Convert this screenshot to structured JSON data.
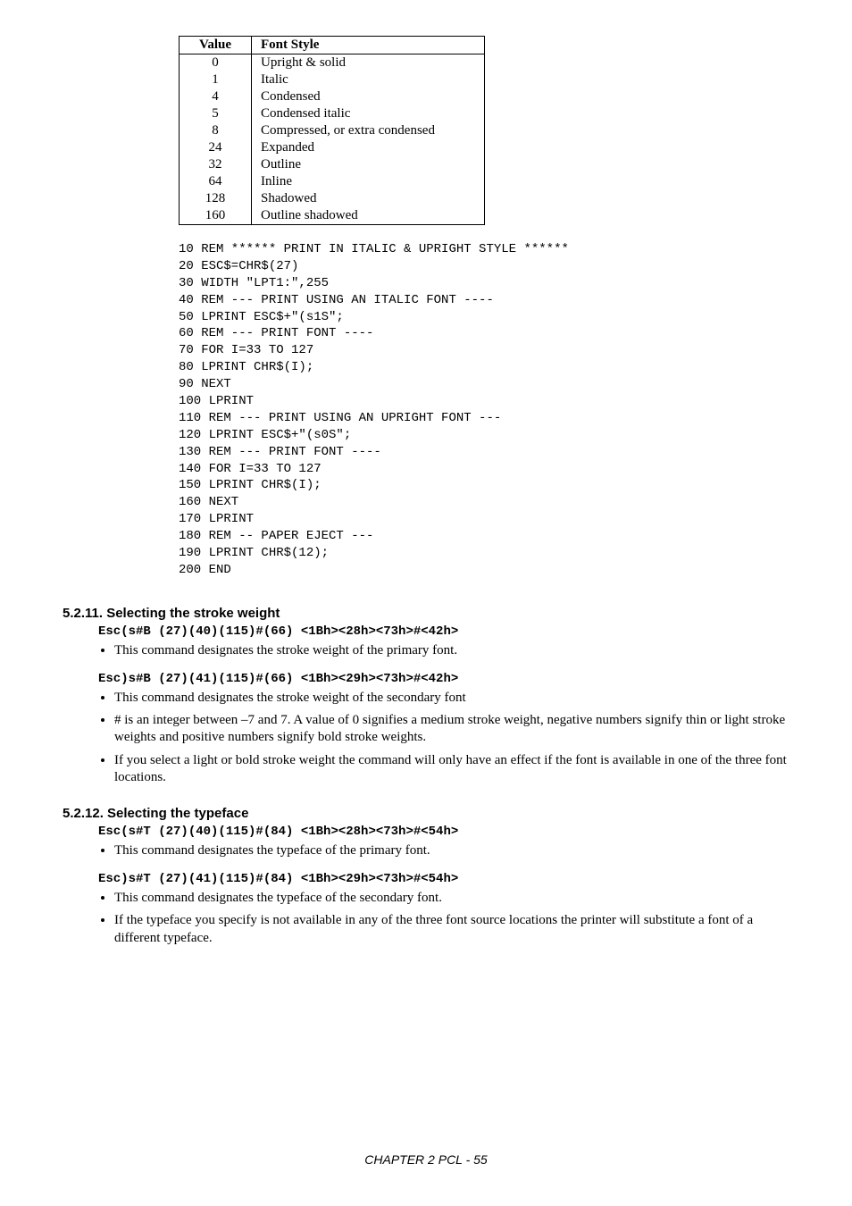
{
  "table": {
    "headers": [
      "Value",
      "Font Style"
    ],
    "rows": [
      [
        "0",
        "Upright & solid"
      ],
      [
        "1",
        "Italic"
      ],
      [
        "4",
        "Condensed"
      ],
      [
        "5",
        "Condensed italic"
      ],
      [
        "8",
        "Compressed, or extra condensed"
      ],
      [
        "24",
        "Expanded"
      ],
      [
        "32",
        "Outline"
      ],
      [
        "64",
        "Inline"
      ],
      [
        "128",
        "Shadowed"
      ],
      [
        "160",
        "Outline shadowed"
      ]
    ]
  },
  "codeblock": "10 REM ****** PRINT IN ITALIC & UPRIGHT STYLE ******\n20 ESC$=CHR$(27)\n30 WIDTH \"LPT1:\",255\n40 REM --- PRINT USING AN ITALIC FONT ----\n50 LPRINT ESC$+\"(s1S\";\n60 REM --- PRINT FONT ----\n70 FOR I=33 TO 127\n80 LPRINT CHR$(I);\n90 NEXT\n100 LPRINT\n110 REM --- PRINT USING AN UPRIGHT FONT ---\n120 LPRINT ESC$+\"(s0S\";\n130 REM --- PRINT FONT ----\n140 FOR I=33 TO 127\n150 LPRINT CHR$(I);\n160 NEXT\n170 LPRINT\n180 REM -- PAPER EJECT ---\n190 LPRINT CHR$(12);\n200 END",
  "sections": {
    "s1": {
      "heading": "5.2.11.  Selecting the stroke weight",
      "cmd1": "Esc(s#B (27)(40)(115)#(66) <1Bh><28h><73h>#<42h>",
      "b1": "This command designates the stroke weight of the primary font.",
      "cmd2": "Esc)s#B (27)(41)(115)#(66) <1Bh><29h><73h>#<42h>",
      "b2": "This command designates the stroke weight of the secondary font",
      "b3": "# is an integer between –7 and 7. A value of 0 signifies a medium stroke weight, negative numbers signify thin or light stroke weights and positive numbers signify bold stroke weights.",
      "b4": "If you select a light or bold stroke weight the command will only have an effect if the font is available in one of the three font locations."
    },
    "s2": {
      "heading": "5.2.12.  Selecting the typeface",
      "cmd1": "Esc(s#T (27)(40)(115)#(84) <1Bh><28h><73h>#<54h>",
      "b1": "This command designates the typeface of the primary font.",
      "cmd2": "Esc)s#T (27)(41)(115)#(84) <1Bh><29h><73h>#<54h>",
      "b2": "This command designates the typeface of the secondary font.",
      "b3": "If the typeface you specify is not available in any of the three font source locations the printer will substitute a font of a different typeface."
    }
  },
  "footer": "CHAPTER 2 PCL - 55"
}
